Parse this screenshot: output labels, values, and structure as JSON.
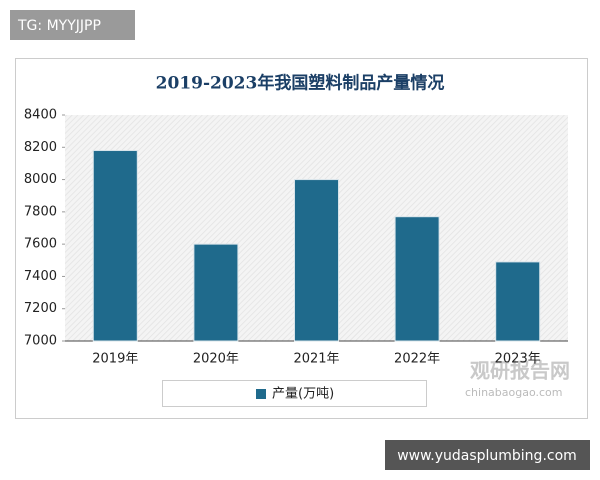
{
  "badge": "TG: MYYJJPP",
  "watermark": {
    "name": "观研报告网",
    "site": "chinabaogao.com"
  },
  "footer_url": "www.yudasplumbing.com",
  "chart_data": {
    "type": "bar",
    "title": "2019-2023年我国塑料制品产量情况",
    "categories": [
      "2019年",
      "2020年",
      "2021年",
      "2022年",
      "2023年"
    ],
    "series": [
      {
        "name": "产量(万吨)",
        "color": "#1f6a8c",
        "values": [
          8180,
          7600,
          8000,
          7770,
          7490
        ]
      }
    ],
    "ylim": [
      7000,
      8400
    ],
    "yticks": [
      7000,
      7200,
      7400,
      7600,
      7800,
      8000,
      8200,
      8400
    ],
    "grid": false
  }
}
